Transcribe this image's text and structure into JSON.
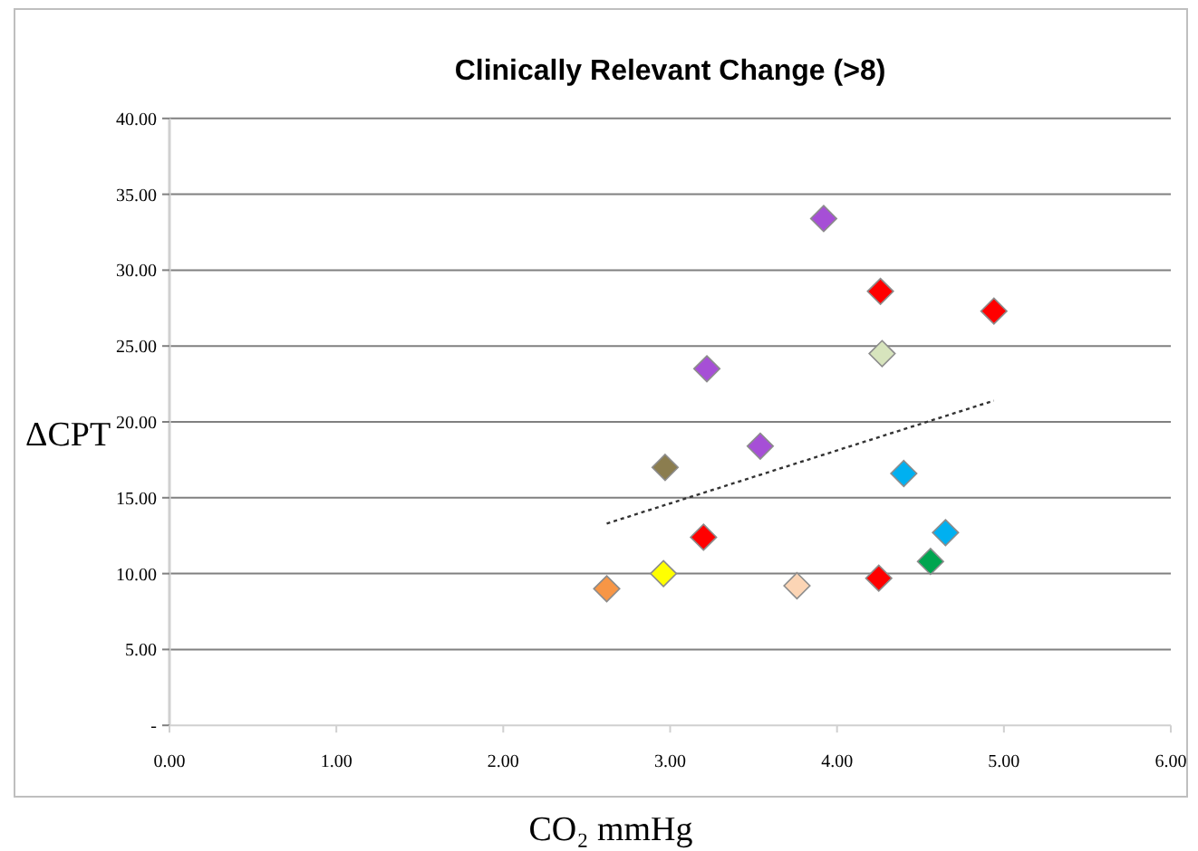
{
  "chart_data": {
    "type": "scatter",
    "title": "Clinically Relevant Change (>8)",
    "xlabel": "CO₂ mmHg",
    "ylabel": "ΔCPT",
    "xlim": [
      0,
      6
    ],
    "xticks": [
      {
        "value": 0,
        "label": "0.00"
      },
      {
        "value": 1,
        "label": "1.00"
      },
      {
        "value": 2,
        "label": "2.00"
      },
      {
        "value": 3,
        "label": "3.00"
      },
      {
        "value": 4,
        "label": "4.00"
      },
      {
        "value": 5,
        "label": "5.00"
      },
      {
        "value": 6,
        "label": "6.00"
      }
    ],
    "ylim": [
      0,
      40
    ],
    "yticks": [
      {
        "value": 0,
        "label": "-"
      },
      {
        "value": 5,
        "label": "5.00"
      },
      {
        "value": 10,
        "label": "10.00"
      },
      {
        "value": 15,
        "label": "15.00"
      },
      {
        "value": 20,
        "label": "20.00"
      },
      {
        "value": 25,
        "label": "25.00"
      },
      {
        "value": 30,
        "label": "30.00"
      },
      {
        "value": 35,
        "label": "35.00"
      },
      {
        "value": 40,
        "label": "40.00"
      }
    ],
    "grid": "y",
    "marker": "diamond",
    "series": [
      {
        "x": [
          3.92,
          4.26,
          4.94,
          4.27,
          3.22,
          3.54,
          2.97,
          4.4,
          4.65,
          3.2,
          4.56,
          2.96,
          4.25,
          3.76,
          2.62
        ],
        "values": [
          33.4,
          28.6,
          27.3,
          24.5,
          23.5,
          18.4,
          17,
          16.6,
          12.7,
          12.4,
          10.8,
          10,
          9.7,
          9.2,
          9
        ],
        "colors": [
          "#a64fd6",
          "#ff0000",
          "#ff0000",
          "#d7e4bd",
          "#a64fd6",
          "#a64fd6",
          "#8b7d4f",
          "#00b0f0",
          "#00b0f0",
          "#ff0000",
          "#00a550",
          "#ffff00",
          "#ff0000",
          "#fcd5b5",
          "#f79646"
        ]
      },
      {
        "type": "line",
        "x": [
          2.62,
          4.94
        ],
        "values": [
          13.3,
          21.4
        ],
        "color": "#333333",
        "line_style": "dotted",
        "marker": "none"
      }
    ]
  }
}
